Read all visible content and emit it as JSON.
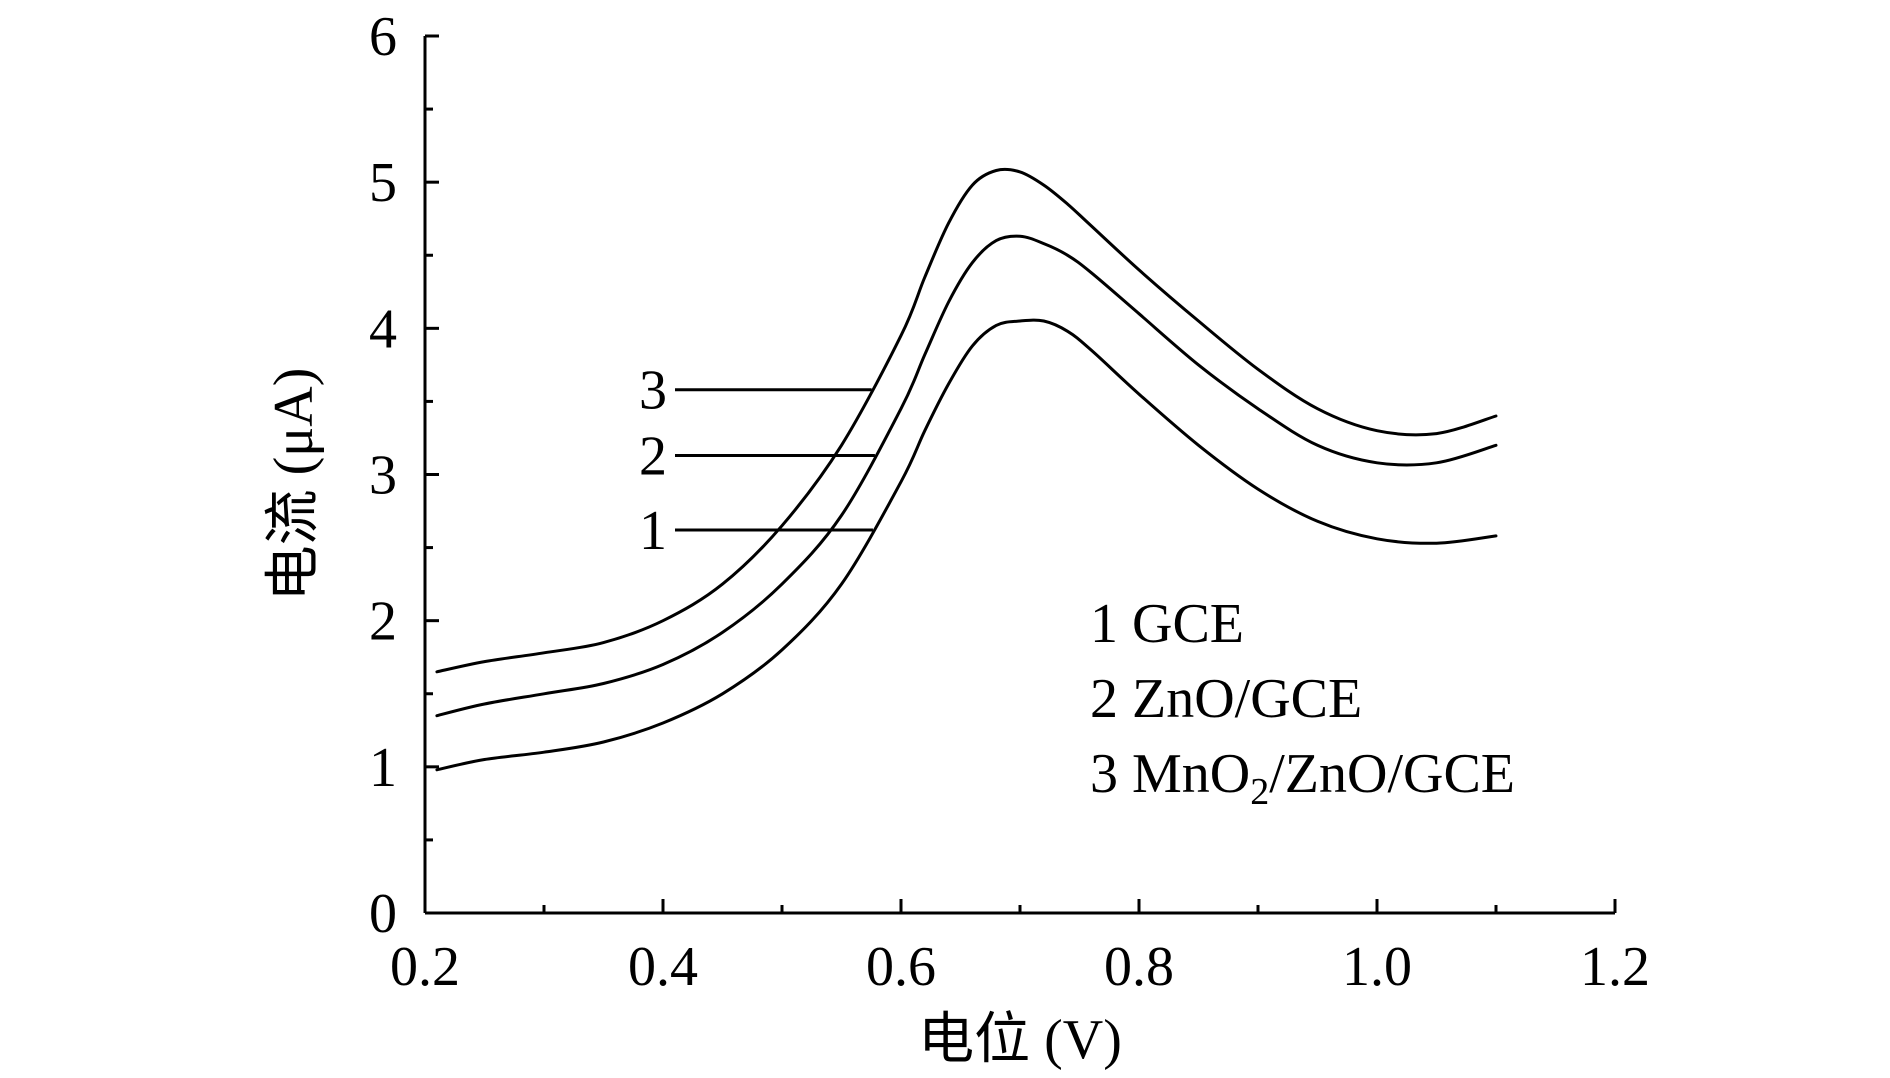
{
  "chart_data": {
    "type": "line",
    "title": "",
    "xlabel": "电位 (V)",
    "ylabel": "电流 (μA)",
    "xlim": [
      0.2,
      1.2
    ],
    "ylim": [
      0,
      6
    ],
    "xticks": [
      "0.2",
      "0.4",
      "0.6",
      "0.8",
      "1.0",
      "1.2"
    ],
    "yticks": [
      "0",
      "1",
      "2",
      "3",
      "4",
      "5",
      "6"
    ],
    "grid": false,
    "colors": {
      "line": "#000000",
      "axis": "#000000"
    },
    "series": [
      {
        "id": "1",
        "label": "1",
        "name": "1 GCE",
        "x": [
          0.21,
          0.25,
          0.3,
          0.35,
          0.4,
          0.45,
          0.5,
          0.55,
          0.6,
          0.62,
          0.64,
          0.66,
          0.68,
          0.7,
          0.72,
          0.74,
          0.76,
          0.8,
          0.85,
          0.9,
          0.95,
          1.0,
          1.05,
          1.1
        ],
        "y": [
          0.98,
          1.05,
          1.1,
          1.17,
          1.3,
          1.5,
          1.8,
          2.25,
          2.95,
          3.3,
          3.62,
          3.88,
          4.02,
          4.05,
          4.05,
          3.98,
          3.85,
          3.55,
          3.2,
          2.9,
          2.68,
          2.56,
          2.53,
          2.58
        ]
      },
      {
        "id": "2",
        "label": "2",
        "name": "2 ZnO/GCE",
        "x": [
          0.21,
          0.25,
          0.3,
          0.35,
          0.4,
          0.45,
          0.5,
          0.55,
          0.6,
          0.62,
          0.64,
          0.66,
          0.68,
          0.7,
          0.72,
          0.74,
          0.76,
          0.8,
          0.85,
          0.9,
          0.95,
          1.0,
          1.05,
          1.1
        ],
        "y": [
          1.35,
          1.43,
          1.5,
          1.57,
          1.7,
          1.92,
          2.25,
          2.72,
          3.45,
          3.82,
          4.18,
          4.45,
          4.6,
          4.63,
          4.58,
          4.5,
          4.38,
          4.1,
          3.75,
          3.45,
          3.2,
          3.08,
          3.08,
          3.2
        ]
      },
      {
        "id": "3",
        "label": "3",
        "name": "3 MnO2/ZnO/GCE",
        "x": [
          0.21,
          0.25,
          0.3,
          0.35,
          0.4,
          0.45,
          0.5,
          0.55,
          0.6,
          0.62,
          0.64,
          0.66,
          0.68,
          0.7,
          0.72,
          0.74,
          0.76,
          0.8,
          0.85,
          0.9,
          0.95,
          1.0,
          1.05,
          1.1
        ],
        "y": [
          1.65,
          1.72,
          1.78,
          1.85,
          2.0,
          2.25,
          2.65,
          3.2,
          3.95,
          4.35,
          4.72,
          4.98,
          5.08,
          5.07,
          4.98,
          4.85,
          4.7,
          4.4,
          4.05,
          3.72,
          3.45,
          3.3,
          3.28,
          3.4
        ]
      }
    ],
    "annotations": {
      "curve_labels": [
        {
          "text": "3",
          "series": "3",
          "y": 3.58
        },
        {
          "text": "2",
          "series": "2",
          "y": 3.13
        },
        {
          "text": "1",
          "series": "1",
          "y": 2.62
        }
      ],
      "legend": {
        "position": "center-right",
        "lines": [
          {
            "parts": [
              {
                "t": "1 GCE"
              }
            ]
          },
          {
            "parts": [
              {
                "t": "2 ZnO/GCE"
              }
            ]
          },
          {
            "parts": [
              {
                "t": "3 MnO"
              },
              {
                "t": "2",
                "sub": true
              },
              {
                "t": "/ZnO/GCE"
              }
            ]
          }
        ]
      }
    }
  }
}
